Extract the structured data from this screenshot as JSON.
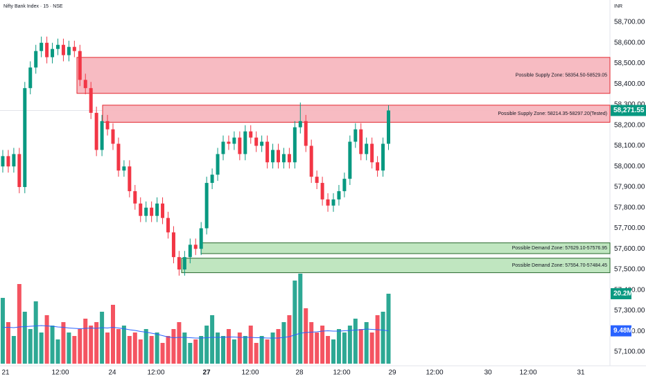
{
  "chart_data": {
    "type": "candlestick",
    "title": "Nifty Bank Index · 15 · NSE",
    "currency": "INR",
    "up_color": "#089981",
    "down_color": "#f23645",
    "open": [
      58000,
      58050,
      58000,
      58060,
      57900,
      58380,
      58480,
      58560,
      58600,
      58530,
      58570,
      58590,
      58540,
      58580,
      58560,
      58420,
      58380,
      58260,
      58080,
      58220,
      58180,
      58110,
      57980,
      58000,
      57880,
      57820,
      57760,
      57800,
      57760,
      57820,
      57750,
      57680,
      57560,
      57500,
      57560,
      57620,
      57600,
      57700,
      57920,
      57960,
      58060,
      58120,
      58110,
      58140,
      58060,
      58170,
      58140,
      58100,
      58120,
      58020,
      58080,
      58020,
      58060,
      58020,
      58190,
      58220,
      58100,
      57950,
      57920,
      57840,
      57810,
      57840,
      57880,
      57940,
      58120,
      58180,
      58060,
      58110,
      58020,
      57980,
      58110
    ],
    "high": [
      58080,
      58080,
      58090,
      58090,
      58410,
      58510,
      58590,
      58630,
      58630,
      58600,
      58620,
      58620,
      58610,
      58610,
      58590,
      58450,
      58410,
      58290,
      58250,
      58250,
      58210,
      58140,
      58030,
      58030,
      57910,
      57850,
      57830,
      57830,
      57850,
      57850,
      57780,
      57710,
      57590,
      57590,
      57650,
      57650,
      57730,
      57950,
      57990,
      58090,
      58150,
      58150,
      58170,
      58170,
      58200,
      58200,
      58170,
      58150,
      58150,
      58110,
      58110,
      58090,
      58090,
      58220,
      58310,
      58250,
      58130,
      57980,
      57950,
      57870,
      57870,
      57910,
      57970,
      58150,
      58210,
      58210,
      58140,
      58140,
      58050,
      58140,
      58297.2
    ],
    "low": [
      57970,
      57970,
      57970,
      57870,
      57870,
      58350,
      58450,
      58530,
      58500,
      58500,
      58540,
      58510,
      58510,
      58530,
      58390,
      58350,
      58230,
      58050,
      58050,
      58150,
      58080,
      57950,
      57950,
      57850,
      57790,
      57730,
      57730,
      57730,
      57730,
      57720,
      57650,
      57530,
      57470,
      57470,
      57530,
      57570,
      57570,
      57670,
      57890,
      57930,
      58030,
      58080,
      58080,
      58030,
      58030,
      58110,
      58070,
      58070,
      57990,
      57990,
      57990,
      57990,
      57990,
      57990,
      58160,
      58070,
      57920,
      57890,
      57810,
      57780,
      57780,
      57810,
      57850,
      57910,
      58090,
      58030,
      58030,
      57990,
      57950,
      57950,
      58080
    ],
    "close": [
      58050,
      58000,
      58060,
      57900,
      58380,
      58480,
      58560,
      58600,
      58530,
      58570,
      58590,
      58540,
      58580,
      58560,
      58420,
      58380,
      58260,
      58080,
      58220,
      58180,
      58110,
      57980,
      58000,
      57880,
      57820,
      57760,
      57800,
      57760,
      57820,
      57750,
      57680,
      57560,
      57500,
      57560,
      57620,
      57600,
      57700,
      57920,
      57960,
      58060,
      58120,
      58110,
      58140,
      58060,
      58170,
      58140,
      58100,
      58120,
      58020,
      58080,
      58020,
      58060,
      58020,
      58190,
      58220,
      58100,
      57950,
      57920,
      57840,
      57810,
      57840,
      57880,
      57940,
      58120,
      58180,
      58060,
      58110,
      58020,
      57980,
      58110,
      58271.55
    ],
    "volume": [
      19,
      12,
      8,
      23,
      15,
      10,
      18,
      9,
      14,
      11,
      7,
      12,
      9,
      8,
      10,
      13,
      11,
      12,
      15,
      9,
      17,
      10,
      11,
      8,
      9,
      7,
      10,
      8,
      9,
      6,
      8,
      10,
      12,
      9,
      6,
      7,
      8,
      11,
      14,
      9,
      8,
      10,
      7,
      9,
      8,
      11,
      6,
      8,
      7,
      9,
      10,
      12,
      14,
      24,
      26,
      16,
      12,
      9,
      11,
      8,
      7,
      10,
      9,
      11,
      13,
      10,
      12,
      9,
      14,
      15,
      20.2
    ],
    "volume_ma": [
      10.5,
      10.5,
      10.4,
      10.6,
      10.7,
      10.8,
      10.9,
      11,
      10.9,
      10.8,
      10.6,
      10.5,
      10.3,
      10.2,
      10.1,
      10.2,
      10.3,
      10.2,
      10.4,
      10.3,
      10.5,
      10.3,
      10.1,
      9.8,
      9.6,
      9.3,
      9.1,
      8.8,
      8.5,
      8.1,
      7.7,
      7.5,
      7.6,
      7.6,
      7.5,
      7.4,
      7.4,
      7.5,
      7.6,
      7.6,
      7.6,
      7.7,
      7.7,
      7.6,
      7.6,
      7.6,
      7.5,
      7.5,
      7.4,
      7.4,
      7.4,
      7.6,
      7.8,
      8.3,
      8.8,
      9.0,
      9.1,
      9.2,
      9.4,
      9.5,
      9.4,
      9.4,
      9.5,
      9.6,
      9.7,
      9.8,
      10.0,
      9.9,
      9.8,
      9.7,
      9.48
    ],
    "volume_ma_color": "#2962ff",
    "volume_ylim": [
      0,
      30
    ],
    "volume_label": "20.2M",
    "volume_ma_label": "9.48M",
    "last_price": {
      "value": 58271.55,
      "label": "58,271.55"
    },
    "ylim": [
      57050,
      58750
    ],
    "yticks": [
      {
        "value": 58700,
        "label": "58,700.00"
      },
      {
        "value": 58600,
        "label": "58,600.00"
      },
      {
        "value": 58500,
        "label": "58,500.00"
      },
      {
        "value": 58400,
        "label": "58,400.00"
      },
      {
        "value": 58300,
        "label": "58,300.00"
      },
      {
        "value": 58200,
        "label": "58,200.00"
      },
      {
        "value": 58100,
        "label": "58,100.00"
      },
      {
        "value": 58000,
        "label": "58,000.00"
      },
      {
        "value": 57900,
        "label": "57,900.00"
      },
      {
        "value": 57800,
        "label": "57,800.00"
      },
      {
        "value": 57700,
        "label": "57,700.00"
      },
      {
        "value": 57600,
        "label": "57,600.00"
      },
      {
        "value": 57500,
        "label": "57,500.00"
      },
      {
        "value": 57400,
        "label": "57,400.00"
      },
      {
        "value": 57300,
        "label": "57,300.00"
      },
      {
        "value": 57200,
        "label": "57,200.00"
      },
      {
        "value": 57100,
        "label": "57,100.00"
      }
    ],
    "x_labels": [
      "21",
      "12:00",
      "24",
      "12:00",
      "27",
      "12:00",
      "28",
      "12:00",
      "29",
      "12:00",
      "30",
      "12:00",
      "31"
    ],
    "zones": [
      {
        "kind": "supply",
        "low": 58354.5,
        "high": 58529.05,
        "label": "Possible Supply Zone: 58354.50-58529.05"
      },
      {
        "kind": "supply",
        "low": 58214.35,
        "high": 58297.2,
        "label": "Possible Supply Zone: 58214.35-58297.20(Tested)"
      },
      {
        "kind": "demand",
        "low": 57576.95,
        "high": 57629.1,
        "label": "Possible Demand Zone: 57629.10-57576.95"
      },
      {
        "kind": "demand",
        "low": 57484.45,
        "high": 57554.7,
        "label": "Possible Demand Zone: 57554.70-57484.45"
      }
    ]
  }
}
